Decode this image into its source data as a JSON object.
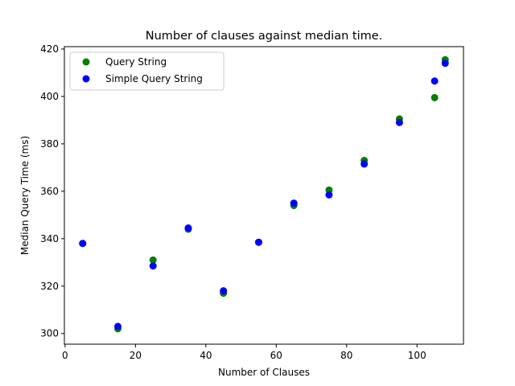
{
  "chart_data": {
    "type": "scatter",
    "title": "Number of clauses against median time.",
    "xlabel": "Number of Clauses",
    "ylabel": "Median Query Time (ms)",
    "xlim": [
      -0.2,
      113.2
    ],
    "ylim": [
      295.5,
      421
    ],
    "xticks": [
      0,
      20,
      40,
      60,
      80,
      100
    ],
    "yticks": [
      300,
      320,
      340,
      360,
      380,
      400,
      420
    ],
    "grid": false,
    "legend_position": "top-left",
    "series": [
      {
        "name": "Query String",
        "color": "#008000",
        "x": [
          5,
          15,
          25,
          35,
          45,
          55,
          65,
          75,
          85,
          95,
          105,
          108
        ],
        "y": [
          338,
          302,
          331,
          344,
          317,
          338.5,
          354,
          360.5,
          373,
          390.5,
          399.5,
          415.5
        ]
      },
      {
        "name": "Simple Query String",
        "color": "#0000ff",
        "x": [
          5,
          15,
          25,
          35,
          45,
          55,
          65,
          75,
          85,
          95,
          105,
          108
        ],
        "y": [
          338,
          303,
          328.5,
          344.5,
          318,
          338.5,
          355,
          358.5,
          371.5,
          389,
          406.5,
          414
        ]
      }
    ]
  }
}
